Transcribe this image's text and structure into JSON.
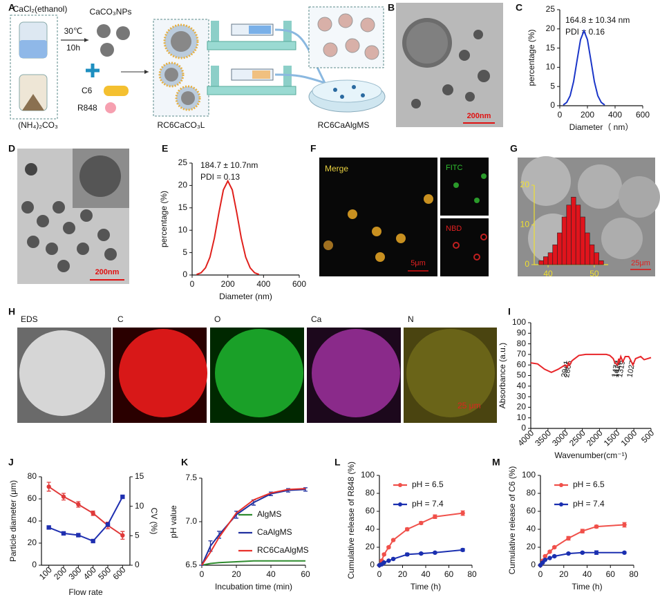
{
  "figure": {
    "panel_labels": [
      "A",
      "B",
      "C",
      "D",
      "E",
      "F",
      "G",
      "H",
      "I",
      "J",
      "K",
      "L",
      "M"
    ],
    "schematic": {
      "reagent_1": "CaCl₂(ethanol)",
      "reagent_2": "(NH₄)₂CO₃",
      "product": "CaCO₃NPs",
      "temperature": "30℃",
      "time": "10h",
      "drug_1": "C6",
      "drug_2": "R848",
      "liposome": "RC6CaCO₃L",
      "microsphere": "RC6CaAlgMS"
    },
    "tem_b": {
      "scale_bar": "200nm"
    },
    "tem_d": {
      "scale_bar": "200nm"
    },
    "confocal_f": {
      "channels": [
        "Merge",
        "FITC",
        "NBD"
      ],
      "scale_bar": "5μm"
    },
    "sem_g": {
      "scale_bar": "25μm"
    },
    "eds_h": {
      "channels": [
        "EDS",
        "C",
        "O",
        "Ca",
        "N"
      ],
      "scale_bar": "25 μm"
    }
  },
  "chart_data": [
    {
      "type": "line",
      "annotations": [
        "164.8 ± 10.34 nm",
        "PDI = 0.16"
      ],
      "xlabel": "Diameter（ nm）",
      "ylabel": "percentage (%)",
      "x": [
        25,
        50,
        75,
        100,
        125,
        150,
        175,
        200,
        225,
        250,
        275,
        300,
        325
      ],
      "series": [
        {
          "color": "#1a35c8",
          "values": [
            0.2,
            0.86,
            2.6,
            6.3,
            11.8,
            17.2,
            19.5,
            17.2,
            11.8,
            6.3,
            2.6,
            0.86,
            0.2
          ]
        }
      ],
      "xlim": [
        0,
        600
      ],
      "xticks": [
        0,
        200,
        400,
        600
      ],
      "ylim": [
        0,
        25
      ],
      "yticks": [
        0,
        5,
        10,
        15,
        20,
        25
      ]
    },
    {
      "type": "line",
      "annotations": [
        "184.7 ± 10.7nm",
        "PDI = 0.13"
      ],
      "xlabel": "Diameter (nm)",
      "ylabel": "percentage (%)",
      "x": [
        25,
        50,
        75,
        100,
        125,
        150,
        175,
        200,
        225,
        250,
        275,
        300,
        325,
        350,
        375
      ],
      "series": [
        {
          "color": "#e0201c",
          "values": [
            0.13,
            0.5,
            1.6,
            4.0,
            8.3,
            13.9,
            19.0,
            21,
            19.0,
            13.9,
            8.3,
            4.0,
            1.6,
            0.5,
            0.13
          ]
        }
      ],
      "xlim": [
        0,
        600
      ],
      "xticks": [
        0,
        200,
        400,
        600
      ],
      "ylim": [
        0,
        25
      ],
      "yticks": [
        0,
        5,
        10,
        15,
        20,
        25
      ]
    },
    {
      "type": "histogram",
      "bins": [
        38,
        39,
        40,
        41,
        42,
        43,
        44,
        45,
        46,
        47,
        48,
        49,
        50,
        51,
        52
      ],
      "values": [
        1,
        2,
        3,
        5,
        8,
        12,
        15,
        17,
        15,
        12,
        8,
        5,
        3,
        1
      ],
      "color": "#e0141c",
      "axis_color": "#f0e030",
      "xlim": [
        37,
        53
      ],
      "xticks": [
        40,
        50
      ],
      "ylim": [
        0,
        20
      ],
      "yticks": [
        0,
        10,
        20
      ]
    },
    {
      "type": "line",
      "xlabel": "Wavenumber(cm⁻¹)",
      "ylabel": "Absorbance (a.u.)",
      "x": [
        4000,
        3800,
        3600,
        3400,
        3200,
        3000,
        2941,
        2900,
        2865,
        2800,
        2600,
        2400,
        2200,
        2000,
        1800,
        1700,
        1600,
        1550,
        1472,
        1440,
        1428,
        1380,
        1319,
        1250,
        1150,
        1100,
        1027,
        950,
        800,
        700,
        600,
        500
      ],
      "series": [
        {
          "color": "#e8262a",
          "values": [
            62,
            61,
            56,
            53,
            56,
            60,
            58,
            62,
            60,
            64,
            69,
            70,
            70,
            70,
            70,
            69,
            66,
            62,
            60,
            66,
            62,
            68,
            63,
            68,
            68,
            65,
            60,
            66,
            68,
            65,
            66,
            67
          ]
        }
      ],
      "peak_labels": [
        2941,
        2865,
        1472,
        1428,
        1319,
        1027
      ],
      "xlim": [
        4000,
        500
      ],
      "xticks": [
        4000,
        3500,
        3000,
        2500,
        2000,
        1500,
        1000,
        500
      ],
      "ylim": [
        0,
        100
      ],
      "yticks": [
        0,
        10,
        20,
        30,
        40,
        50,
        60,
        70,
        80,
        90,
        100
      ]
    },
    {
      "type": "line",
      "xlabel": "Flow rate",
      "ylabel": "Particle diameter (μm)",
      "y2label": "CV (%)",
      "x": [
        100,
        200,
        300,
        400,
        500,
        600
      ],
      "series": [
        {
          "color": "#e03a3a",
          "marker": "circle",
          "values": [
            71,
            62,
            55,
            47,
            36,
            27
          ],
          "errors": [
            4,
            3,
            2.5,
            2,
            3,
            3.5
          ]
        },
        {
          "color": "#1f2fb0",
          "marker": "square",
          "axis": "y2",
          "values": [
            6.4,
            5.4,
            5.1,
            4.1,
            6.9,
            11.6
          ]
        }
      ],
      "xlim": [
        50,
        650
      ],
      "xticks": [
        100,
        200,
        300,
        400,
        500,
        600
      ],
      "ylim": [
        0,
        80
      ],
      "yticks": [
        0,
        20,
        40,
        60,
        80
      ],
      "y2lim": [
        0,
        15
      ],
      "y2ticks": [
        0,
        5,
        10,
        15
      ]
    },
    {
      "type": "line",
      "xlabel": "Incubation time (min)",
      "ylabel": "pH value",
      "legend": "center right",
      "x": [
        0,
        5,
        10,
        20,
        30,
        40,
        50,
        60
      ],
      "series": [
        {
          "name": "AlgMS",
          "color": "#2e8b2e",
          "values": [
            6.5,
            6.52,
            6.53,
            6.54,
            6.55,
            6.55,
            6.55,
            6.55
          ]
        },
        {
          "name": "CaAlgMS",
          "color": "#1f2f9f",
          "values": [
            6.5,
            6.72,
            6.85,
            7.08,
            7.22,
            7.32,
            7.36,
            7.37
          ],
          "errors": [
            0,
            0.06,
            0.04,
            0.04,
            0.03,
            0.02,
            0.02,
            0.02
          ]
        },
        {
          "name": "RC6CaAlgMS",
          "color": "#e8302a",
          "values": [
            6.5,
            6.65,
            6.82,
            7.1,
            7.25,
            7.33,
            7.37,
            7.38
          ]
        }
      ],
      "xlim": [
        0,
        60
      ],
      "xticks": [
        0,
        20,
        40,
        60
      ],
      "ylim": [
        6.5,
        7.5
      ],
      "yticks": [
        6.5,
        {
          "value": 7,
          "label": "7.0"
        },
        7.5
      ]
    },
    {
      "type": "line",
      "xlabel": "Time (h)",
      "ylabel": "Cumulative release of R848 (%)",
      "legend": "upper left",
      "x": [
        0,
        2,
        4,
        8,
        12,
        24,
        36,
        48,
        72
      ],
      "series": [
        {
          "name": "pH = 6.5",
          "color": "#f0504a",
          "marker": "circle",
          "values": [
            0,
            5,
            12,
            20,
            28,
            40,
            47,
            54,
            58
          ],
          "errors": [
            0,
            1,
            1,
            1,
            1,
            1.5,
            1.5,
            2,
            2.5
          ]
        },
        {
          "name": "pH = 7.4",
          "color": "#1a2fb0",
          "marker": "circle",
          "values": [
            0,
            1,
            3,
            5,
            7,
            12,
            13,
            14,
            17
          ],
          "errors": [
            0,
            0.5,
            0.5,
            0.5,
            1,
            1.5,
            1,
            1,
            1.5
          ]
        }
      ],
      "xlim": [
        0,
        80
      ],
      "xticks": [
        0,
        20,
        40,
        60,
        80
      ],
      "ylim": [
        0,
        100
      ],
      "yticks": [
        0,
        20,
        40,
        60,
        80,
        100
      ]
    },
    {
      "type": "line",
      "xlabel": "Time (h)",
      "ylabel": "Cumulative release of C6 (%)",
      "legend": "upper left",
      "x": [
        0,
        2,
        4,
        8,
        12,
        24,
        36,
        48,
        72
      ],
      "series": [
        {
          "name": "pH = 6.5",
          "color": "#f0504a",
          "marker": "circle",
          "values": [
            0,
            5,
            10,
            15,
            20,
            30,
            38,
            43,
            45
          ],
          "errors": [
            0,
            1,
            1,
            1,
            1,
            2,
            2,
            1.5,
            2.5
          ]
        },
        {
          "name": "pH = 7.4",
          "color": "#1a2fb0",
          "marker": "circle",
          "values": [
            0,
            3,
            6,
            8,
            10,
            13,
            14,
            14,
            14
          ],
          "errors": [
            0,
            0.5,
            0.5,
            0.5,
            1,
            1,
            1,
            2,
            1
          ]
        }
      ],
      "xlim": [
        0,
        80
      ],
      "xticks": [
        0,
        20,
        40,
        60,
        80
      ],
      "ylim": [
        0,
        100
      ],
      "yticks": [
        0,
        20,
        40,
        60,
        80,
        100
      ]
    }
  ]
}
